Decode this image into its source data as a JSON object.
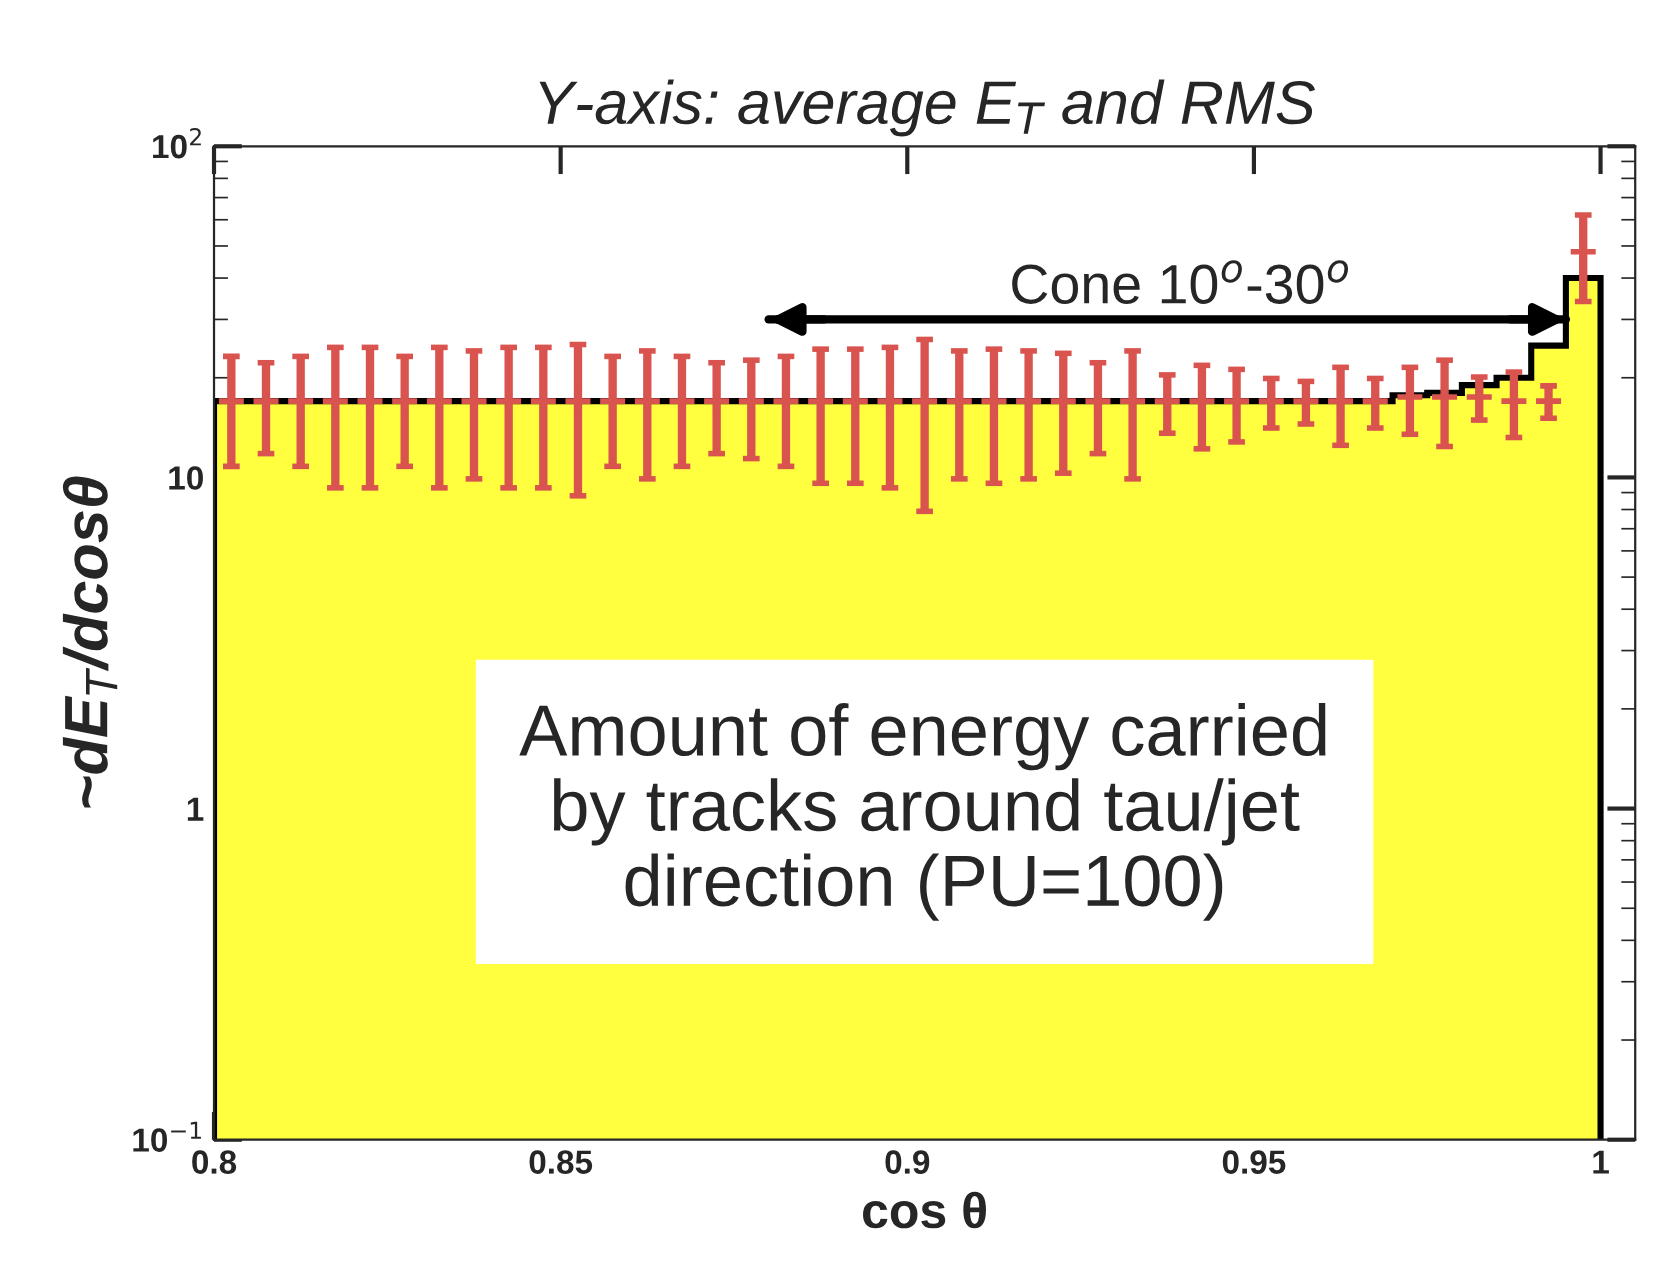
{
  "chart_data": {
    "type": "histogram",
    "title": "Y-axis: average E$_{T}$ and RMS",
    "xlabel": "cos θ",
    "ylabel": "~dE$_{T}$/dcosθ",
    "bins": [
      0.8,
      0.805,
      0.81,
      0.815,
      0.82,
      0.825,
      0.83,
      0.835,
      0.84,
      0.845,
      0.85,
      0.855,
      0.86,
      0.865,
      0.87,
      0.875,
      0.88,
      0.885,
      0.89,
      0.895,
      0.9,
      0.905,
      0.91,
      0.915,
      0.92,
      0.925,
      0.93,
      0.935,
      0.94,
      0.945,
      0.95,
      0.955,
      0.96,
      0.965,
      0.97,
      0.975,
      0.98,
      0.985,
      0.99,
      0.995,
      1.0
    ],
    "series": [
      {
        "color": "#ffff40",
        "values": [
          17,
          17,
          17,
          17,
          17,
          17,
          17,
          17,
          17,
          17,
          17,
          17,
          17,
          17,
          17,
          17,
          17,
          17,
          17,
          17,
          17,
          17,
          17,
          17,
          17,
          17,
          17,
          17,
          17,
          17,
          17,
          17,
          17,
          17,
          17.7,
          18,
          19,
          20,
          25,
          40
        ]
      },
      {
        "type": "scatter",
        "color": "#d9534f",
        "marker": "cross",
        "x": [
          0.8025,
          0.8075,
          0.8125,
          0.8175,
          0.8225,
          0.8275,
          0.8325,
          0.8375,
          0.8425,
          0.8475,
          0.8525,
          0.8575,
          0.8625,
          0.8675,
          0.8725,
          0.8775,
          0.8825,
          0.8875,
          0.8925,
          0.8975,
          0.9025,
          0.9075,
          0.9125,
          0.9175,
          0.9225,
          0.9275,
          0.9325,
          0.9375,
          0.9425,
          0.9475,
          0.9525,
          0.9575,
          0.9625,
          0.9675,
          0.9725,
          0.9775,
          0.9825,
          0.9875,
          0.9925,
          0.9975
        ],
        "values": [
          17,
          17,
          17,
          17,
          17,
          17,
          17,
          17,
          17,
          17,
          17,
          17,
          17,
          17,
          17,
          17,
          17,
          17,
          17,
          17,
          17,
          17,
          17,
          17,
          17,
          17,
          17,
          17,
          17,
          17,
          17,
          17,
          17,
          17,
          17.5,
          17.5,
          17.5,
          17,
          17,
          48
        ],
        "errors": [
          6.2,
          5.2,
          6.2,
          7.7,
          7.7,
          6.2,
          7.7,
          7.1,
          7.7,
          7.7,
          8.2,
          6.2,
          7.1,
          6.2,
          5.2,
          5.6,
          6.2,
          7.4,
          7.4,
          7.7,
          9.1,
          7.1,
          7.4,
          7.1,
          6.7,
          5.2,
          7.1,
          3.4,
          4.8,
          4.2,
          2.9,
          2.5,
          4.5,
          2.9,
          4.0,
          5.1,
          2.6,
          3.8,
          1.9,
          14
        ]
      },
      {
        "type": "line",
        "color": "#000000",
        "marker": "none",
        "x": [
          0.88,
          0.995
        ],
        "values": [
          30,
          30
        ]
      }
    ],
    "log": "y",
    "xlim": [
      0.8,
      1.005
    ],
    "ylim": [
      0.1,
      100
    ],
    "xticks": [
      0.8,
      0.85,
      0.9,
      0.95,
      1
    ],
    "yticks": [
      {
        "value": 0.1,
        "label": "10$^{−1}$"
      },
      1,
      10,
      {
        "value": 100,
        "label": "10$^{2}$"
      }
    ],
    "annotations": [
      "Cone 10$^{o}$-30$^{o}$",
      "Amount of energy carried\nby tracks around tau/jet\ndirection (PU=100)"
    ],
    "grid": false,
    "legend": false
  }
}
